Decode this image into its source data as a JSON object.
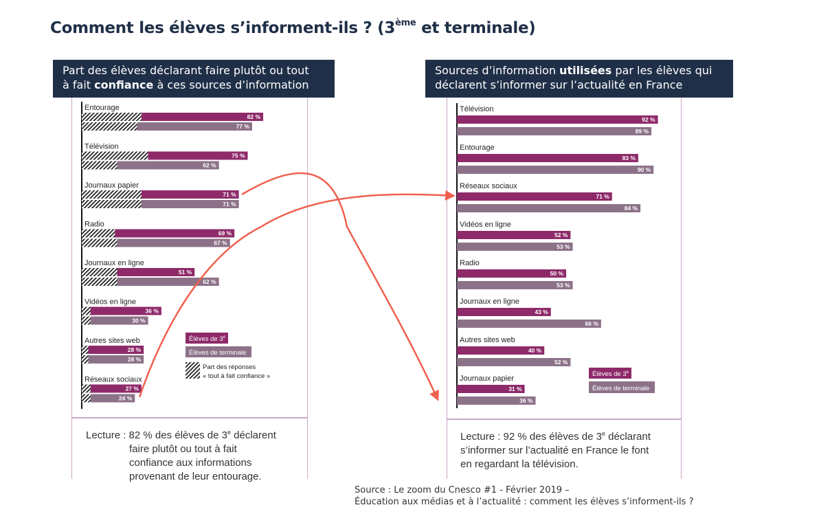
{
  "title": {
    "main": "Comment les élèves s’informent-ils ? (3",
    "sup": "ème",
    "tail": " et terminale)"
  },
  "left_header": {
    "line1": "Part des élèves déclarant faire plutôt ou tout",
    "line2_pre": "à fait ",
    "line2_bold": "confiance",
    "line2_post": " à ces sources d’information"
  },
  "right_header": {
    "line1_pre": "Sources d’information ",
    "line1_bold": "utilisées",
    "line1_post": " par les élèves qui",
    "line2": "déclarent s’informer sur l’actualité en France"
  },
  "left_reading": {
    "prefix": "Lecture : 82 % des élèves de 3",
    "sup": "e",
    "line1_end": " déclarent",
    "line2": "faire plutôt ou tout à fait",
    "line3": "confiance aux informations",
    "line4": "provenant de leur entourage."
  },
  "right_reading": {
    "prefix": "Lecture : 92 % des élèves de 3",
    "sup": "e",
    "line1_end": " déclarant",
    "line2": "s’informer sur l’actualité en France le font",
    "line3": "en regardant la télévision."
  },
  "source": {
    "line1": "Source : Le zoom du Cnesco #1 - Février 2019 –",
    "line2": "Éducation aux médias et à l’actualité : comment les élèves s’informent-ils ?"
  },
  "colors": {
    "series_3e": "#8e2a6a",
    "series_terminale": "#8c7288",
    "header_bg": "#1f2f47",
    "arrow": "#f0604e",
    "panel_border": "#c9a7c5"
  },
  "chart_data": [
    {
      "type": "bar",
      "orientation": "horizontal",
      "categories": [
        "Entourage",
        "Télévision",
        "Journaux papier",
        "Radio",
        "Journaux en ligne",
        "Vidéos en ligne",
        "Autres sites web",
        "Réseaux sociaux"
      ],
      "series": [
        {
          "name": "Élèves de 3e",
          "values": [
            82,
            75,
            71,
            69,
            51,
            36,
            28,
            27
          ],
          "tout_a_fait_confiance": [
            27,
            30,
            27,
            15,
            16,
            4,
            3,
            4
          ]
        },
        {
          "name": "Élèves de terminale",
          "values": [
            77,
            62,
            71,
            67,
            62,
            30,
            28,
            24
          ],
          "tout_a_fait_confiance": [
            25,
            16,
            27,
            16,
            16,
            4,
            3,
            4
          ]
        }
      ],
      "value_labels_3e": [
        "82 %",
        "75 %",
        "71 %",
        "69 %",
        "51 %",
        "36 %",
        "28 %",
        "27 %"
      ],
      "value_labels_terminale": [
        "77 %",
        "62 %",
        "71 %",
        "67 %",
        "62 %",
        "30 %",
        "28 %",
        "24 %"
      ],
      "legend": {
        "s1": "Élèves de 3",
        "s1_sup": "e",
        "s2": "Élèves de terminale",
        "hatch_line1": "Part des réponses",
        "hatch_line2": "« tout à fait confiance »"
      },
      "unit": "%"
    },
    {
      "type": "bar",
      "orientation": "horizontal",
      "categories": [
        "Télévision",
        "Entourage",
        "Réseaux sociaux",
        "Vidéos en ligne",
        "Radio",
        "Journaux en ligne",
        "Autres sites web",
        "Journaux papier"
      ],
      "series": [
        {
          "name": "Élèves de 3e",
          "values": [
            92,
            83,
            71,
            52,
            50,
            43,
            40,
            31
          ]
        },
        {
          "name": "Élèves de terminale",
          "values": [
            89,
            90,
            84,
            53,
            53,
            66,
            52,
            36
          ]
        }
      ],
      "value_labels_3e": [
        "92 %",
        "83 %",
        "71 %",
        "52 %",
        "50 %",
        "43 %",
        "40 %",
        "31 %"
      ],
      "value_labels_terminale": [
        "89 %",
        "90 %",
        "84 %",
        "53 %",
        "53 %",
        "66 %",
        "52 %",
        "36 %"
      ],
      "legend": {
        "s1": "Élèves de 3",
        "s1_sup": "e",
        "s2": "Élèves de terminale"
      },
      "unit": "%"
    }
  ]
}
